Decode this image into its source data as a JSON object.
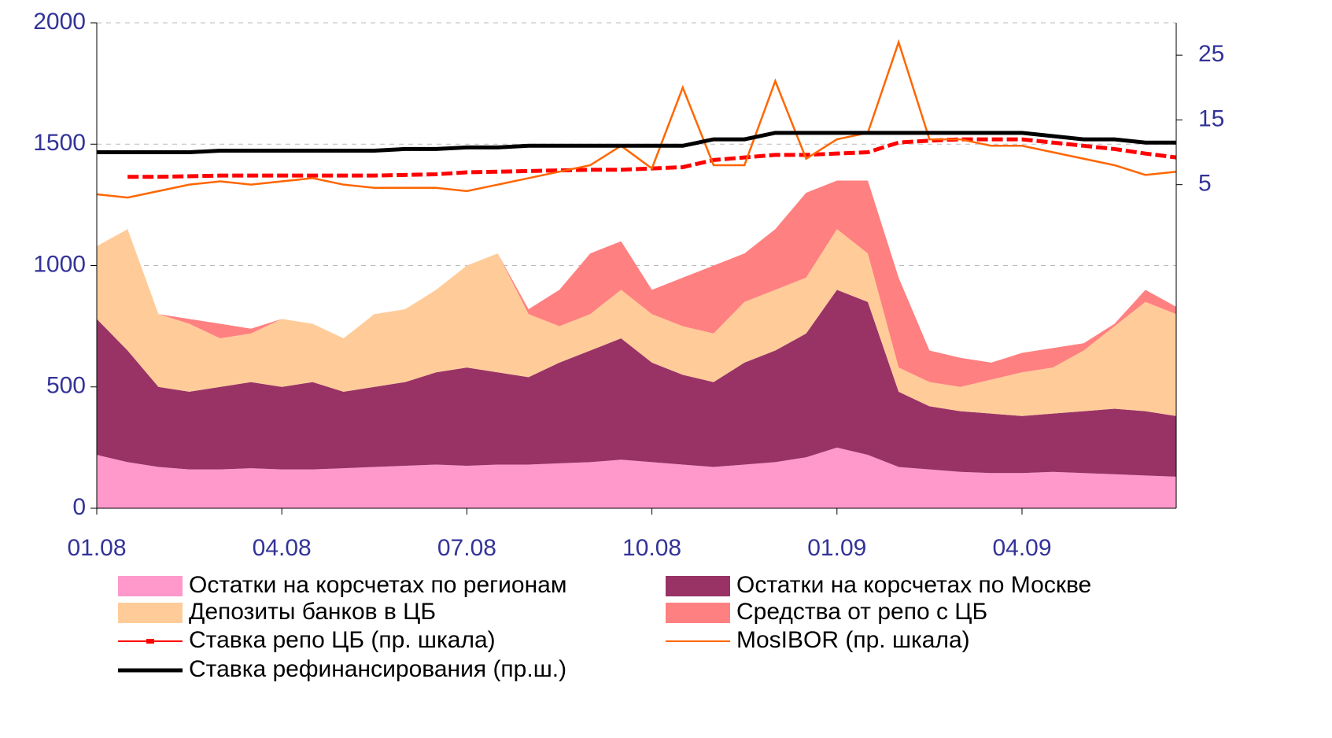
{
  "chart_data": {
    "type": "area",
    "categories": [
      "01.08",
      null,
      null,
      null,
      null,
      null,
      "04.08",
      null,
      null,
      null,
      null,
      null,
      "07.08",
      null,
      null,
      null,
      null,
      null,
      "10.08",
      null,
      null,
      null,
      null,
      null,
      "01.09",
      null,
      null,
      null,
      null,
      null,
      "04.09",
      null,
      null,
      null,
      null,
      null
    ],
    "ylim": [
      0,
      2000
    ],
    "yticks": [
      0,
      500,
      1000,
      1500,
      2000
    ],
    "y2lim": [
      -45,
      30
    ],
    "y2ticks": [
      5,
      15,
      25
    ],
    "grid": true,
    "series": [
      {
        "name": "Остатки на корсчетах по регионам",
        "type": "area",
        "color": "#ff99cc",
        "values": [
          220,
          190,
          170,
          160,
          160,
          165,
          160,
          160,
          165,
          170,
          175,
          180,
          175,
          180,
          180,
          185,
          190,
          200,
          190,
          180,
          170,
          180,
          190,
          210,
          250,
          220,
          170,
          160,
          150,
          145,
          145,
          150,
          145,
          140,
          135,
          130
        ]
      },
      {
        "name": "Остатки на корсчетах по Москве",
        "type": "area",
        "color": "#993366",
        "values": [
          560,
          460,
          330,
          320,
          340,
          355,
          340,
          360,
          315,
          330,
          345,
          380,
          405,
          380,
          360,
          415,
          460,
          500,
          410,
          370,
          350,
          420,
          460,
          510,
          650,
          630,
          310,
          260,
          250,
          245,
          235,
          240,
          255,
          270,
          265,
          250
        ]
      },
      {
        "name": "Депозиты банков в ЦБ",
        "type": "area",
        "color": "#ffcc99",
        "values": [
          300,
          500,
          300,
          280,
          200,
          200,
          280,
          240,
          220,
          300,
          300,
          340,
          420,
          490,
          260,
          150,
          150,
          200,
          200,
          200,
          200,
          250,
          250,
          230,
          250,
          200,
          100,
          100,
          100,
          140,
          180,
          190,
          250,
          340,
          450,
          420
        ]
      },
      {
        "name": "Средства от репо с ЦБ",
        "type": "area",
        "color": "#ff8080",
        "values": [
          0,
          0,
          0,
          20,
          60,
          20,
          0,
          0,
          0,
          0,
          0,
          0,
          0,
          0,
          20,
          150,
          250,
          200,
          100,
          200,
          280,
          200,
          250,
          350,
          200,
          300,
          370,
          130,
          120,
          70,
          80,
          80,
          30,
          10,
          50,
          30
        ]
      },
      {
        "name": "Ставка репо ЦБ (пр. шкала)",
        "type": "line",
        "axis": "y2",
        "color": "#ff0000",
        "dash": true,
        "values": [
          null,
          6.2,
          6.2,
          6.3,
          6.4,
          6.4,
          6.4,
          6.4,
          6.4,
          6.4,
          6.5,
          6.6,
          6.9,
          7,
          7.1,
          7.2,
          7.3,
          7.3,
          7.5,
          7.7,
          8.8,
          9.2,
          9.6,
          9.6,
          9.8,
          10,
          11.5,
          11.8,
          12,
          12,
          12,
          11.5,
          11,
          10.5,
          9.8,
          9.2
        ]
      },
      {
        "name": "MosIBOR (пр. шкала)",
        "type": "line",
        "axis": "y2",
        "color": "#ff6600",
        "values": [
          3.5,
          3,
          4,
          5,
          5.5,
          5,
          5.5,
          6,
          5,
          4.5,
          4.5,
          4.5,
          4,
          5,
          6,
          7,
          8,
          11,
          7.5,
          20,
          8,
          8,
          21,
          9,
          12,
          13,
          27,
          12,
          12,
          11,
          11,
          10,
          9,
          8,
          6.5,
          7
        ]
      },
      {
        "name": "Ставка рефинансирования (пр.ш.)",
        "type": "line",
        "axis": "y2",
        "color": "#000000",
        "values": [
          10,
          10,
          10,
          10,
          10.25,
          10.25,
          10.25,
          10.25,
          10.25,
          10.25,
          10.5,
          10.5,
          10.75,
          10.75,
          11,
          11,
          11,
          11,
          11,
          11,
          12,
          12,
          13,
          13,
          13,
          13,
          13,
          13,
          13,
          13,
          13,
          12.5,
          12,
          12,
          11.5,
          11.5
        ]
      }
    ]
  }
}
